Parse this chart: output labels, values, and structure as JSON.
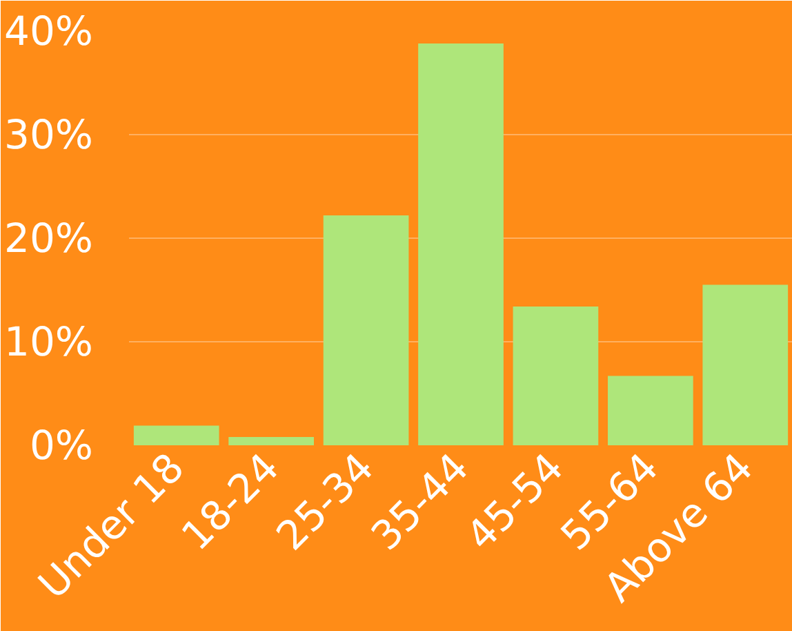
{
  "chart_data": {
    "type": "bar",
    "categories": [
      "Under 18",
      "18-24",
      "25-34",
      "35-44",
      "45-54",
      "55-64",
      "Above 64"
    ],
    "values": [
      1.9,
      0.8,
      22.2,
      38.8,
      13.4,
      6.7,
      15.5
    ],
    "color": "#aee67a",
    "ylim": [
      0,
      40
    ],
    "yticks": [
      {
        "value": 0,
        "label": "0%"
      },
      {
        "value": 10,
        "label": "10%"
      },
      {
        "value": 20,
        "label": "20%"
      },
      {
        "value": 30,
        "label": "30%"
      },
      {
        "value": 40,
        "label": "40%"
      }
    ],
    "grid": "y"
  }
}
